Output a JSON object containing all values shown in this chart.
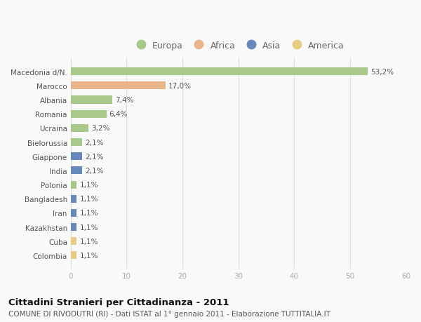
{
  "categories": [
    "Macedonia d/N.",
    "Marocco",
    "Albania",
    "Romania",
    "Ucraina",
    "Bielorussia",
    "Giappone",
    "India",
    "Polonia",
    "Bangladesh",
    "Iran",
    "Kazakhstan",
    "Cuba",
    "Colombia"
  ],
  "values": [
    53.2,
    17.0,
    7.4,
    6.4,
    3.2,
    2.1,
    2.1,
    2.1,
    1.1,
    1.1,
    1.1,
    1.1,
    1.1,
    1.1
  ],
  "labels": [
    "53,2%",
    "17,0%",
    "7,4%",
    "6,4%",
    "3,2%",
    "2,1%",
    "2,1%",
    "2,1%",
    "1,1%",
    "1,1%",
    "1,1%",
    "1,1%",
    "1,1%",
    "1,1%"
  ],
  "continents": [
    "Europa",
    "Africa",
    "Europa",
    "Europa",
    "Europa",
    "Europa",
    "Asia",
    "Asia",
    "Europa",
    "Asia",
    "Asia",
    "Asia",
    "America",
    "America"
  ],
  "continent_colors": {
    "Europa": "#a8c98a",
    "Africa": "#e8b48a",
    "Asia": "#6688bb",
    "America": "#e8cc82"
  },
  "legend_order": [
    "Europa",
    "Africa",
    "Asia",
    "America"
  ],
  "xlim": [
    0,
    60
  ],
  "xticks": [
    0,
    10,
    20,
    30,
    40,
    50,
    60
  ],
  "title": "Cittadini Stranieri per Cittadinanza - 2011",
  "subtitle": "COMUNE DI RIVODUTRI (RI) - Dati ISTAT al 1° gennaio 2011 - Elaborazione TUTTITALIA.IT",
  "background_color": "#f9f9f9",
  "bar_height": 0.55,
  "label_fontsize": 7.5,
  "tick_fontsize": 7.5,
  "title_fontsize": 9.5,
  "subtitle_fontsize": 7.5
}
